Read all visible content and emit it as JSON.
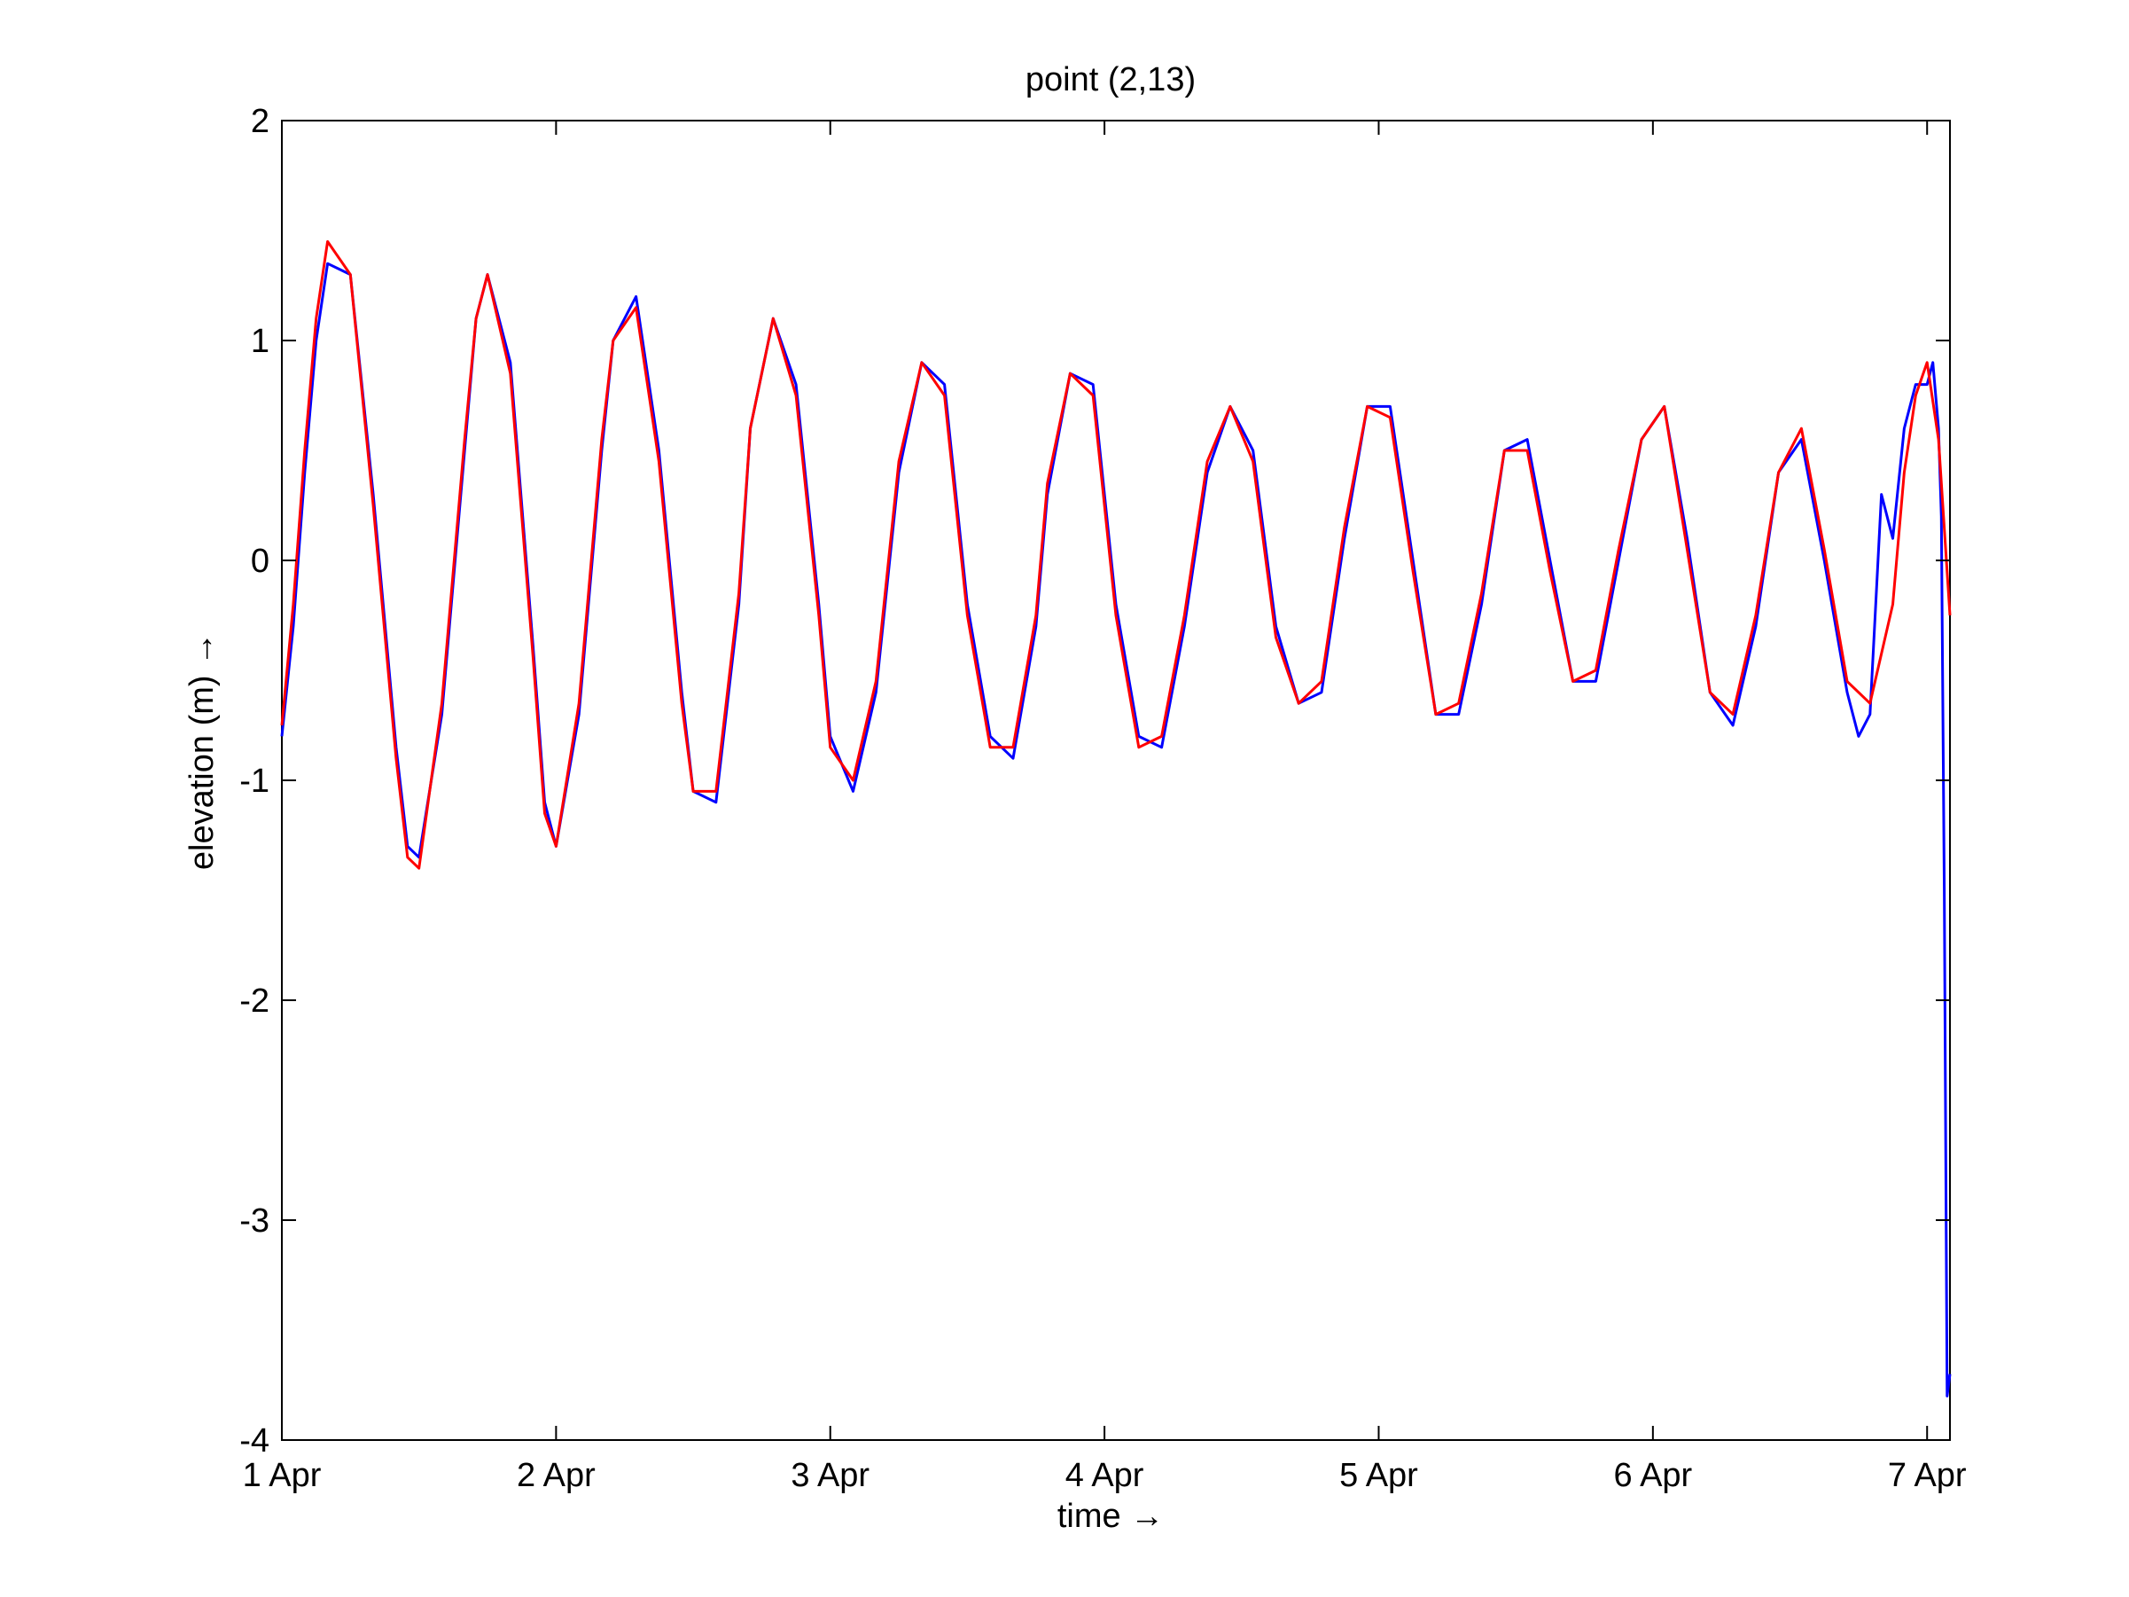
{
  "chart_data": {
    "type": "line",
    "title": "point (2,13)",
    "xlabel": "time →",
    "ylabel": "elevation (m) →",
    "xlim": [
      "1 Apr",
      "7 Apr 02:00"
    ],
    "ylim": [
      -4,
      2
    ],
    "grid": false,
    "legend": "none",
    "x_ticks": [
      "1 Apr",
      "2 Apr",
      "3 Apr",
      "4 Apr",
      "5 Apr",
      "6 Apr",
      "7 Apr"
    ],
    "y_ticks": [
      "-4",
      "-3",
      "-2",
      "-1",
      "0",
      "1",
      "2"
    ],
    "series": [
      {
        "color": "#0000ff",
        "x": [
          "1 Apr 00:00",
          "1 Apr 01:00",
          "1 Apr 02:00",
          "1 Apr 03:00",
          "1 Apr 04:00",
          "1 Apr 06:00",
          "1 Apr 08:00",
          "1 Apr 10:00",
          "1 Apr 11:00",
          "1 Apr 12:00",
          "1 Apr 14:00",
          "1 Apr 16:00",
          "1 Apr 17:00",
          "1 Apr 18:00",
          "1 Apr 20:00",
          "1 Apr 22:00",
          "1 Apr 23:00",
          "2 Apr 00:00",
          "2 Apr 02:00",
          "2 Apr 04:00",
          "2 Apr 05:00",
          "2 Apr 07:00",
          "2 Apr 09:00",
          "2 Apr 11:00",
          "2 Apr 12:00",
          "2 Apr 14:00",
          "2 Apr 16:00",
          "2 Apr 17:00",
          "2 Apr 19:00",
          "2 Apr 21:00",
          "2 Apr 23:00",
          "3 Apr 00:00",
          "3 Apr 02:00",
          "3 Apr 04:00",
          "3 Apr 06:00",
          "3 Apr 08:00",
          "3 Apr 10:00",
          "3 Apr 12:00",
          "3 Apr 14:00",
          "3 Apr 16:00",
          "3 Apr 18:00",
          "3 Apr 19:00",
          "3 Apr 21:00",
          "3 Apr 23:00",
          "4 Apr 01:00",
          "4 Apr 03:00",
          "4 Apr 05:00",
          "4 Apr 07:00",
          "4 Apr 09:00",
          "4 Apr 11:00",
          "4 Apr 13:00",
          "4 Apr 15:00",
          "4 Apr 17:00",
          "4 Apr 19:00",
          "4 Apr 21:00",
          "4 Apr 23:00",
          "5 Apr 01:00",
          "5 Apr 03:00",
          "5 Apr 05:00",
          "5 Apr 07:00",
          "5 Apr 09:00",
          "5 Apr 11:00",
          "5 Apr 13:00",
          "5 Apr 15:00",
          "5 Apr 17:00",
          "5 Apr 19:00",
          "5 Apr 21:00",
          "5 Apr 23:00",
          "6 Apr 01:00",
          "6 Apr 03:00",
          "6 Apr 05:00",
          "6 Apr 07:00",
          "6 Apr 09:00",
          "6 Apr 11:00",
          "6 Apr 13:00",
          "6 Apr 15:00",
          "6 Apr 17:00",
          "6 Apr 18:00",
          "6 Apr 19:00",
          "6 Apr 20:00",
          "6 Apr 21:00",
          "6 Apr 22:00",
          "6 Apr 23:00",
          "7 Apr 00:00",
          "7 Apr 00:30",
          "7 Apr 01:00",
          "7 Apr 01:15",
          "7 Apr 01:30",
          "7 Apr 01:45",
          "7 Apr 02:00"
        ],
        "y": [
          -0.8,
          -0.3,
          0.4,
          1.0,
          1.35,
          1.3,
          0.3,
          -0.85,
          -1.3,
          -1.35,
          -0.7,
          0.5,
          1.1,
          1.3,
          0.9,
          -0.4,
          -1.1,
          -1.3,
          -0.7,
          0.5,
          1.0,
          1.2,
          0.5,
          -0.6,
          -1.05,
          -1.1,
          -0.2,
          0.6,
          1.1,
          0.8,
          -0.2,
          -0.8,
          -1.05,
          -0.6,
          0.4,
          0.9,
          0.8,
          -0.2,
          -0.8,
          -0.9,
          -0.3,
          0.3,
          0.85,
          0.8,
          -0.2,
          -0.8,
          -0.85,
          -0.3,
          0.4,
          0.7,
          0.5,
          -0.3,
          -0.65,
          -0.6,
          0.1,
          0.7,
          0.7,
          0.0,
          -0.7,
          -0.7,
          -0.2,
          0.5,
          0.55,
          0.0,
          -0.55,
          -0.55,
          0.0,
          0.55,
          0.7,
          0.1,
          -0.6,
          -0.75,
          -0.3,
          0.4,
          0.55,
          0.0,
          -0.6,
          -0.8,
          -0.7,
          0.3,
          0.1,
          0.6,
          0.8,
          0.8,
          0.9,
          0.6,
          0.2,
          -1.5,
          -3.8,
          -3.7
        ]
      },
      {
        "color": "#ff0000",
        "x": [
          "1 Apr 00:00",
          "1 Apr 01:00",
          "1 Apr 02:00",
          "1 Apr 03:00",
          "1 Apr 04:00",
          "1 Apr 06:00",
          "1 Apr 08:00",
          "1 Apr 10:00",
          "1 Apr 11:00",
          "1 Apr 12:00",
          "1 Apr 14:00",
          "1 Apr 16:00",
          "1 Apr 17:00",
          "1 Apr 18:00",
          "1 Apr 20:00",
          "1 Apr 22:00",
          "1 Apr 23:00",
          "2 Apr 00:00",
          "2 Apr 02:00",
          "2 Apr 04:00",
          "2 Apr 05:00",
          "2 Apr 07:00",
          "2 Apr 09:00",
          "2 Apr 11:00",
          "2 Apr 12:00",
          "2 Apr 14:00",
          "2 Apr 16:00",
          "2 Apr 17:00",
          "2 Apr 19:00",
          "2 Apr 21:00",
          "2 Apr 23:00",
          "3 Apr 00:00",
          "3 Apr 02:00",
          "3 Apr 04:00",
          "3 Apr 06:00",
          "3 Apr 08:00",
          "3 Apr 10:00",
          "3 Apr 12:00",
          "3 Apr 14:00",
          "3 Apr 16:00",
          "3 Apr 18:00",
          "3 Apr 19:00",
          "3 Apr 21:00",
          "3 Apr 23:00",
          "4 Apr 01:00",
          "4 Apr 03:00",
          "4 Apr 05:00",
          "4 Apr 07:00",
          "4 Apr 09:00",
          "4 Apr 11:00",
          "4 Apr 13:00",
          "4 Apr 15:00",
          "4 Apr 17:00",
          "4 Apr 19:00",
          "4 Apr 21:00",
          "4 Apr 23:00",
          "5 Apr 01:00",
          "5 Apr 03:00",
          "5 Apr 05:00",
          "5 Apr 07:00",
          "5 Apr 09:00",
          "5 Apr 11:00",
          "5 Apr 13:00",
          "5 Apr 15:00",
          "5 Apr 17:00",
          "5 Apr 19:00",
          "5 Apr 21:00",
          "5 Apr 23:00",
          "6 Apr 01:00",
          "6 Apr 03:00",
          "6 Apr 05:00",
          "6 Apr 07:00",
          "6 Apr 09:00",
          "6 Apr 11:00",
          "6 Apr 13:00",
          "6 Apr 15:00",
          "6 Apr 17:00",
          "6 Apr 19:00",
          "6 Apr 21:00",
          "6 Apr 22:00",
          "6 Apr 23:00",
          "7 Apr 00:00",
          "7 Apr 01:00",
          "7 Apr 02:00"
        ],
        "y": [
          -0.75,
          -0.2,
          0.5,
          1.1,
          1.45,
          1.3,
          0.25,
          -0.9,
          -1.35,
          -1.4,
          -0.65,
          0.55,
          1.1,
          1.3,
          0.85,
          -0.45,
          -1.15,
          -1.3,
          -0.65,
          0.55,
          1.0,
          1.15,
          0.45,
          -0.65,
          -1.05,
          -1.05,
          -0.15,
          0.6,
          1.1,
          0.75,
          -0.25,
          -0.85,
          -1.0,
          -0.55,
          0.45,
          0.9,
          0.75,
          -0.25,
          -0.85,
          -0.85,
          -0.25,
          0.35,
          0.85,
          0.75,
          -0.25,
          -0.85,
          -0.8,
          -0.25,
          0.45,
          0.7,
          0.45,
          -0.35,
          -0.65,
          -0.55,
          0.15,
          0.7,
          0.65,
          -0.05,
          -0.7,
          -0.65,
          -0.15,
          0.5,
          0.5,
          -0.05,
          -0.55,
          -0.5,
          0.05,
          0.55,
          0.7,
          0.05,
          -0.6,
          -0.7,
          -0.25,
          0.4,
          0.6,
          0.05,
          -0.55,
          -0.65,
          -0.2,
          0.4,
          0.75,
          0.9,
          0.55,
          -0.25
        ]
      }
    ]
  }
}
